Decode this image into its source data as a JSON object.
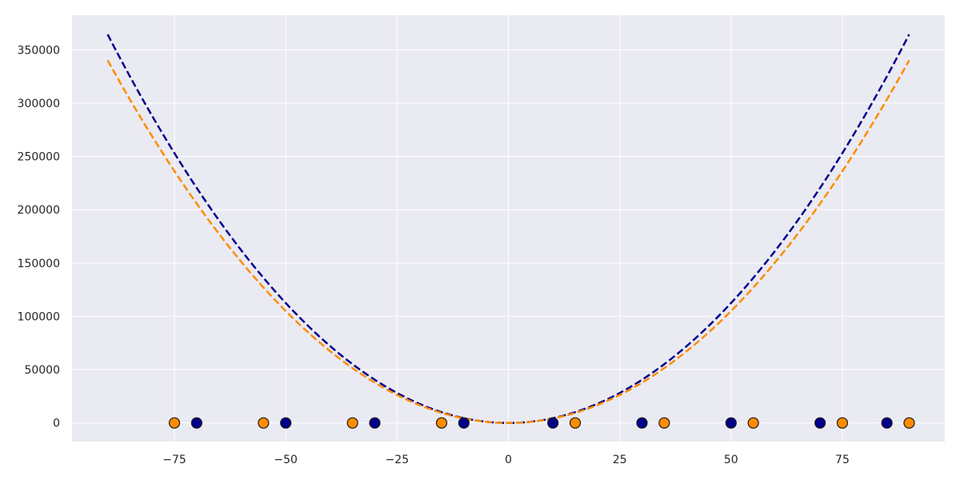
{
  "colors": {
    "background": "#ffffff",
    "plot_area": "#eaeaf2",
    "grid": "#ffffff",
    "tick_text": "#262626",
    "marker_edge": "#1a1a1a"
  },
  "chart_data": {
    "type": "scatter",
    "title": "",
    "xlabel": "",
    "ylabel": "",
    "xlim": [
      -98,
      98
    ],
    "ylim": [
      -17500,
      382500
    ],
    "grid": true,
    "x_ticks": [
      -75,
      -50,
      -25,
      0,
      25,
      50,
      75
    ],
    "x_tick_labels": [
      "−75",
      "−50",
      "−25",
      "0",
      "25",
      "50",
      "75"
    ],
    "y_ticks": [
      0,
      50000,
      100000,
      150000,
      200000,
      250000,
      300000,
      350000
    ],
    "y_tick_labels": [
      "0",
      "50000",
      "100000",
      "150000",
      "200000",
      "250000",
      "300000",
      "350000"
    ],
    "series": [
      {
        "kind": "points",
        "color": "#00008b",
        "x": [
          -70,
          -50,
          -30,
          -10,
          10,
          30,
          50,
          70,
          85
        ],
        "y": [
          0,
          0,
          0,
          0,
          0,
          0,
          0,
          0,
          0
        ]
      },
      {
        "kind": "points",
        "color": "#ff8c00",
        "x": [
          -75,
          -55,
          -35,
          -15,
          15,
          35,
          55,
          75,
          90
        ],
        "y": [
          0,
          0,
          0,
          0,
          0,
          0,
          0,
          0,
          0
        ]
      },
      {
        "kind": "curve",
        "color": "#00008b",
        "line_style": "dashed",
        "equation": "y = 45 x^2",
        "coefficient": 45,
        "x_range": [
          -90,
          90
        ]
      },
      {
        "kind": "curve",
        "color": "#ff8c00",
        "line_style": "dashed",
        "equation": "y = 42 x^2",
        "coefficient": 42,
        "x_range": [
          -90,
          90
        ]
      }
    ]
  }
}
